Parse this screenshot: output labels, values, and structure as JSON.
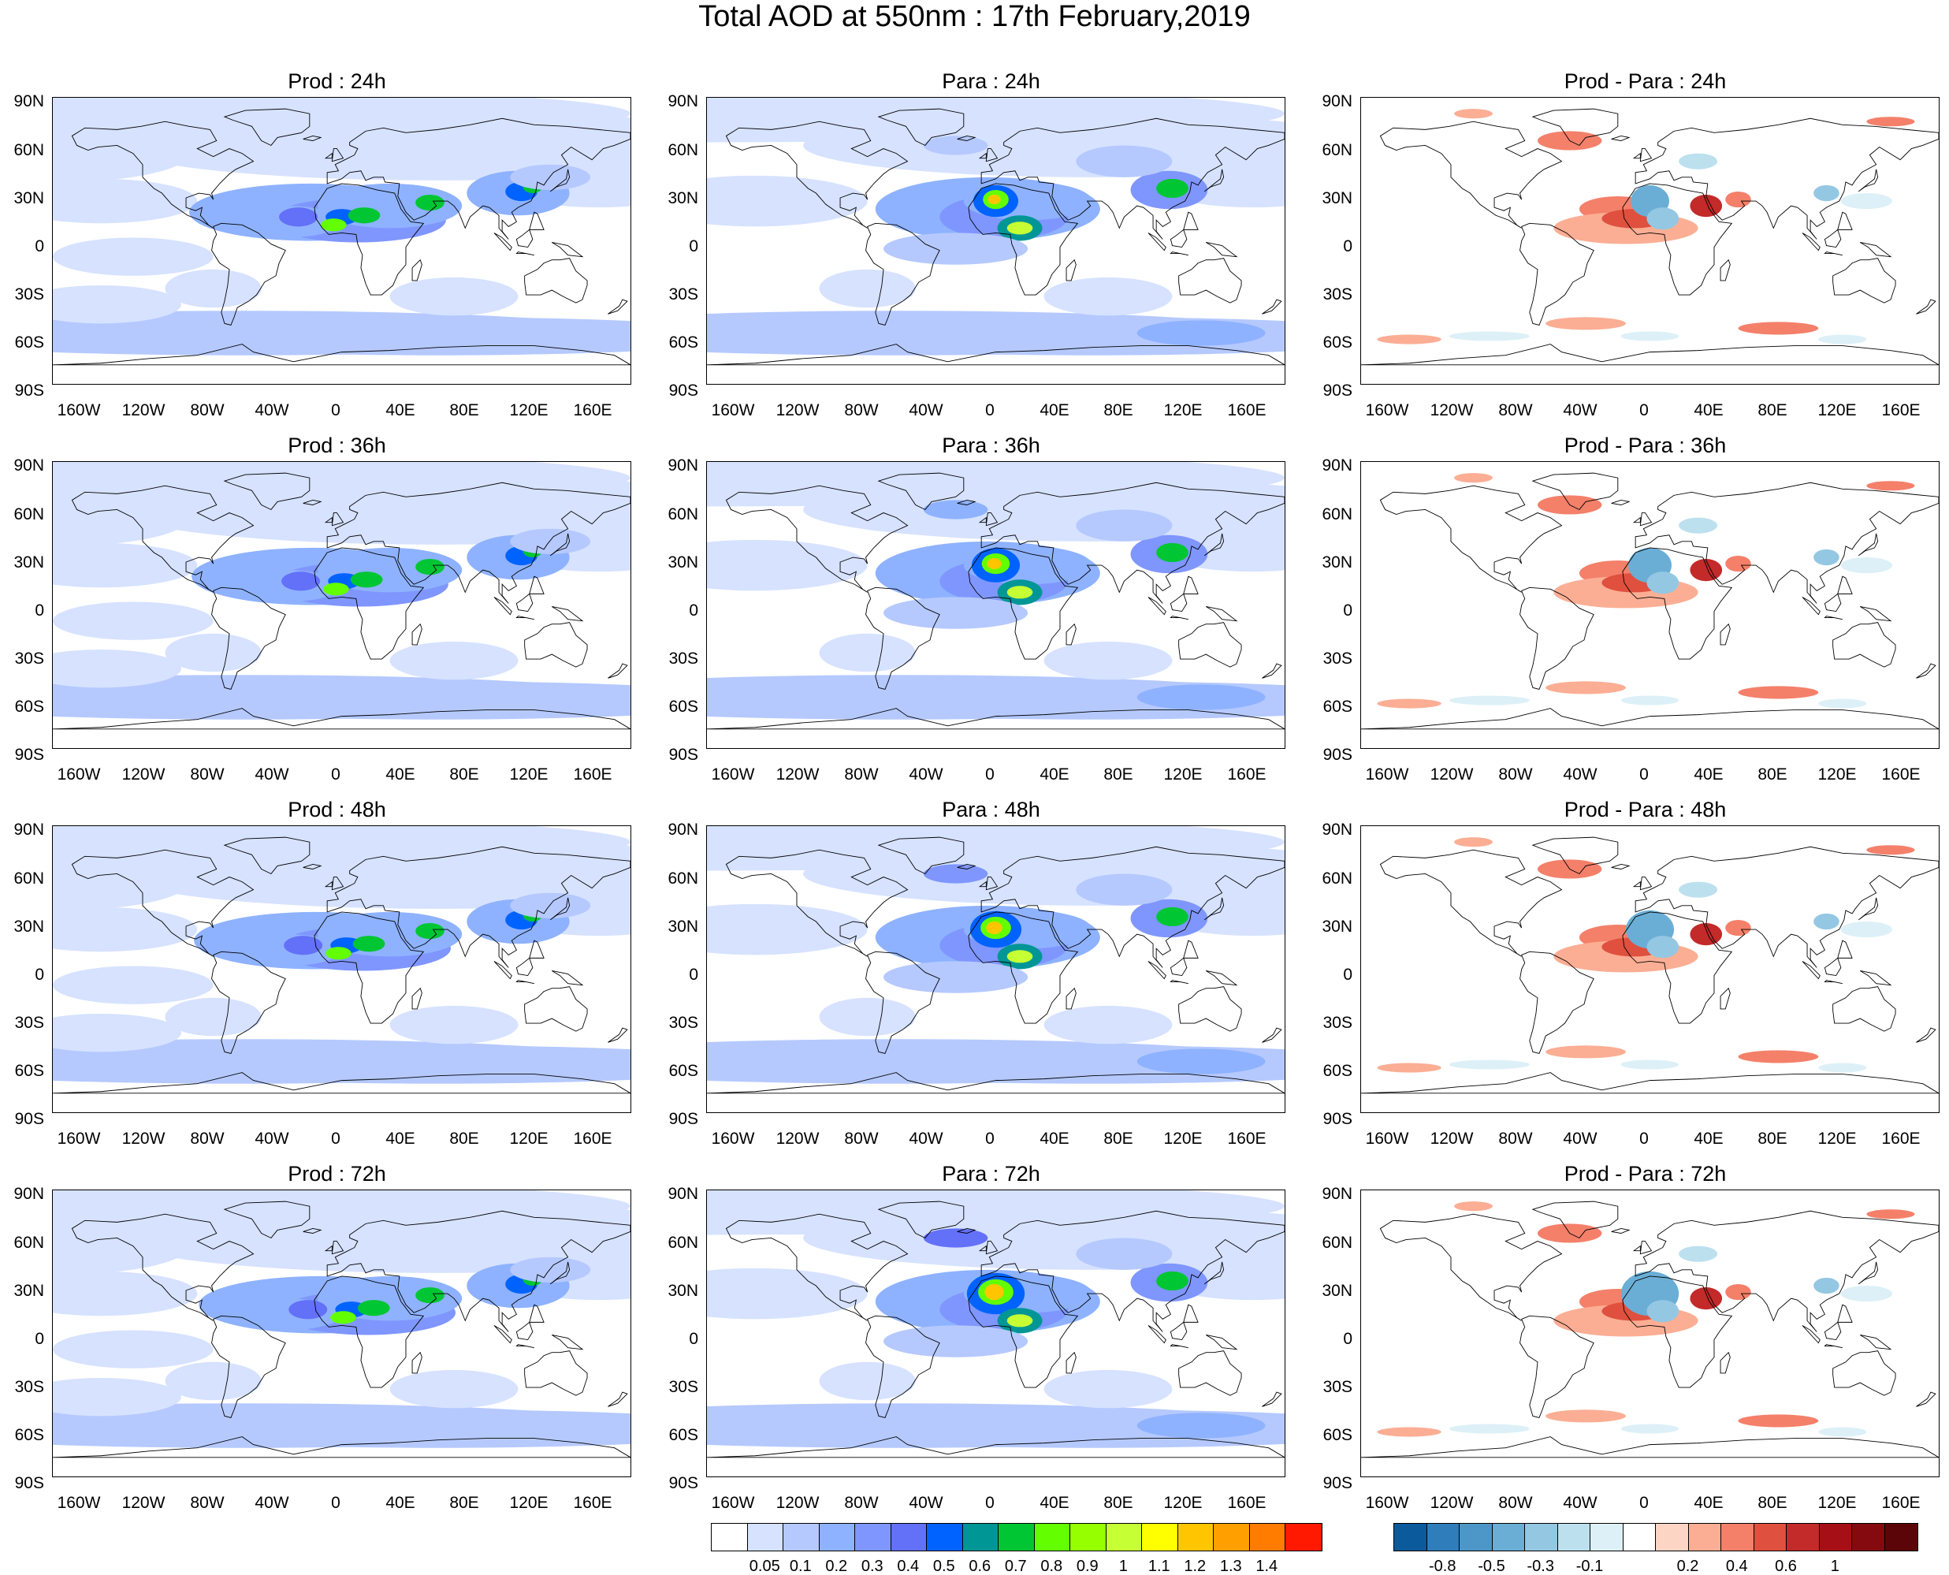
{
  "title": "Total AOD at 550nm : 17th February,2019",
  "lat_labels": [
    "90N",
    "60N",
    "30N",
    "0",
    "30S",
    "60S",
    "90S"
  ],
  "lon_labels": [
    "160W",
    "120W",
    "80W",
    "40W",
    "0",
    "40E",
    "80E",
    "120E",
    "160E"
  ],
  "columns": [
    "prod",
    "para",
    "diff"
  ],
  "panels": [
    {
      "title": "Prod : 24h",
      "kind": "prod",
      "hour": 24
    },
    {
      "title": "Para : 24h",
      "kind": "para",
      "hour": 24
    },
    {
      "title": "Prod - Para : 24h",
      "kind": "diff",
      "hour": 24
    },
    {
      "title": "Prod : 36h",
      "kind": "prod",
      "hour": 36
    },
    {
      "title": "Para : 36h",
      "kind": "para",
      "hour": 36
    },
    {
      "title": "Prod - Para : 36h",
      "kind": "diff",
      "hour": 36
    },
    {
      "title": "Prod : 48h",
      "kind": "prod",
      "hour": 48
    },
    {
      "title": "Para : 48h",
      "kind": "para",
      "hour": 48
    },
    {
      "title": "Prod - Para : 48h",
      "kind": "diff",
      "hour": 48
    },
    {
      "title": "Prod : 72h",
      "kind": "prod",
      "hour": 72
    },
    {
      "title": "Para : 72h",
      "kind": "para",
      "hour": 72
    },
    {
      "title": "Prod - Para : 72h",
      "kind": "diff",
      "hour": 72
    }
  ],
  "aod_colorbar": {
    "colors": [
      "#ffffff",
      "#d6e2ff",
      "#b5c9ff",
      "#8eb2ff",
      "#7f96ff",
      "#6370f8",
      "#0063ff",
      "#009696",
      "#00c633",
      "#63ff00",
      "#96ff00",
      "#c6ff33",
      "#ffff00",
      "#ffc600",
      "#ffa000",
      "#ff7c00",
      "#ff1900"
    ],
    "labels": [
      "0.05",
      "0.1",
      "0.2",
      "0.3",
      "0.4",
      "0.5",
      "0.6",
      "0.7",
      "0.8",
      "0.9",
      "1",
      "1.1",
      "1.2",
      "1.3",
      "1.4"
    ]
  },
  "diff_colorbar": {
    "colors": [
      "#0a5a9c",
      "#2f7dbb",
      "#4d97c8",
      "#6aaed6",
      "#94c7e2",
      "#bde0ef",
      "#ddf0f8",
      "#ffffff",
      "#fdd5c4",
      "#fbae94",
      "#f4806a",
      "#e0503e",
      "#c32a2a",
      "#a50f15",
      "#840a10",
      "#5c0508"
    ],
    "labels": [
      "-0.8",
      "-0.5",
      "-0.3",
      "-0.1",
      "0.2",
      "0.4",
      "0.6",
      "1"
    ]
  }
}
